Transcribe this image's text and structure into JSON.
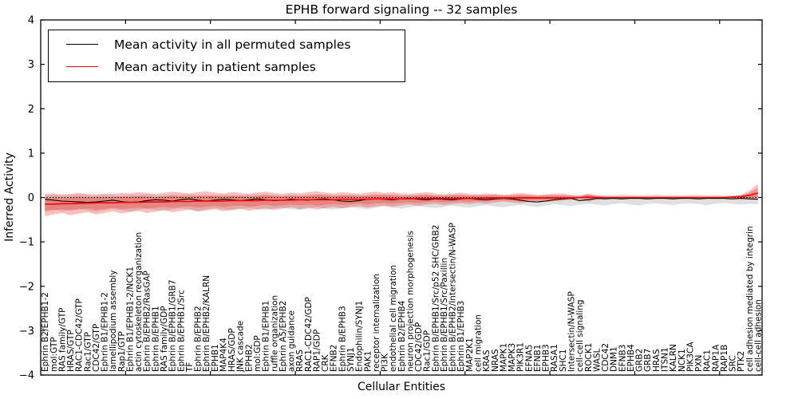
{
  "chart_data": {
    "type": "line",
    "title": "EPHB forward signaling -- 32 samples",
    "xlabel": "Cellular Entities",
    "ylabel": "Inferred Activity",
    "ylim": [
      -4,
      4
    ],
    "yticks": [
      4,
      3,
      2,
      1,
      0,
      -1,
      -2,
      -3,
      -4
    ],
    "grid": false,
    "legend_position": "upper left",
    "zero_line": "dotted",
    "colors": {
      "permuted_line": "#000000",
      "patient_line": "#ff0000",
      "patient_band": "rgba(240,45,40,0.30)",
      "permuted_band": "rgba(128,128,128,0.25)",
      "background": "#ffffff"
    },
    "categories": [
      "Ephrin B2/EPHB1-2",
      "mol:GTP",
      "RAS family/GTP",
      "HRAS/GTP",
      "RAC1-CDC42/GTP",
      "Rac1/GTP",
      "CDC42/GTP",
      "Ephrin B1/EPHB1-2",
      "lamellipodium assembly",
      "Rap1/GTP",
      "Ephrin B1/EPHB1-2/NCK1",
      "actin cytoskeleton reorganization",
      "Ephrin B/EPHB2/RasGAP",
      "Ephrin B/EPHB1",
      "RAS family/GDP",
      "Ephrin B/EPHB1/GRB7",
      "Ephrin B/EPHB1/Src",
      "TF",
      "Ephrin B/EPHB2",
      "Ephrin B/EPHB2/KALRN",
      "EPHB1",
      "MAP4K4",
      "HRAS/GDP",
      "JNK cascade",
      "EPHB2",
      "mol:GDP",
      "Ephrin B1/EPHB1",
      "ruffle organization",
      "Ephrin A5/EPHB2",
      "axon guidance",
      "RRAS",
      "RAC1-CDC42/GDP",
      "RAP1/GDP",
      "CRK",
      "EFNB2",
      "Ephrin B/EPHB3",
      "SYNJ1",
      "Endophilin/SYNJ1",
      "PAK1",
      "receptor internalization",
      "PI3K",
      "endothelial cell migration",
      "Ephrin B2/EPHB4",
      "neuron projection morphogenesis",
      "CDC42/GDP",
      "Rac1/GDP",
      "Ephrin B/EPHB1/Src/p52 SHC/GRB2",
      "Ephrin B/EPHB1/Src/Paxillin",
      "Ephrin B/EPHB2/Intersectin/N-WASP",
      "Ephrin B1/EPHB3",
      "MAP2K1",
      "cell migration",
      "KRAS",
      "NRAS",
      "MAPK1",
      "MAPK3",
      "PIK3R1",
      "EFNA5",
      "EFNB1",
      "EPHB3",
      "RASA1",
      "SHC1",
      "Intersectin/N-WASP",
      "cell-cell signaling",
      "ROCK1",
      "WASL",
      "CDC42",
      "DNM1",
      "EFNB3",
      "EPHB4",
      "GRB2",
      "GRB7",
      "HRAS",
      "ITSN1",
      "KALRN",
      "NCK1",
      "PIK3CA",
      "PXN",
      "RAC1",
      "RAP1A",
      "RAP1B",
      "SRC",
      "PTK2",
      "cell adhesion mediated by integrin",
      "cell-cell adhesion"
    ],
    "series": [
      {
        "name": "Mean activity in all permuted samples",
        "color": "#000000",
        "values": [
          -0.04,
          -0.06,
          -0.08,
          -0.09,
          -0.1,
          -0.11,
          -0.1,
          -0.08,
          -0.06,
          -0.09,
          -0.11,
          -0.1,
          -0.07,
          -0.05,
          -0.06,
          -0.08,
          -0.05,
          -0.03,
          -0.06,
          -0.08,
          -0.06,
          -0.04,
          -0.05,
          -0.07,
          -0.05,
          -0.03,
          -0.05,
          -0.07,
          -0.06,
          -0.04,
          -0.05,
          -0.06,
          -0.04,
          -0.03,
          -0.05,
          -0.08,
          -0.09,
          -0.07,
          -0.04,
          -0.03,
          -0.04,
          -0.05,
          -0.03,
          -0.02,
          -0.04,
          -0.05,
          -0.03,
          -0.04,
          -0.05,
          -0.03,
          -0.02,
          -0.04,
          -0.05,
          -0.03,
          -0.02,
          -0.03,
          -0.06,
          -0.09,
          -0.1,
          -0.08,
          -0.05,
          -0.03,
          -0.02,
          -0.07,
          -0.05,
          -0.02,
          -0.03,
          -0.02,
          -0.03,
          -0.02,
          -0.02,
          -0.03,
          -0.02,
          -0.02,
          -0.03,
          -0.02,
          -0.02,
          -0.03,
          -0.02,
          -0.02,
          -0.02,
          -0.03,
          -0.02,
          -0.03,
          -0.04
        ]
      },
      {
        "name": "Mean activity in patient samples",
        "color": "#ff0000",
        "values": [
          -0.15,
          -0.15,
          -0.14,
          -0.14,
          -0.13,
          -0.13,
          -0.12,
          -0.12,
          -0.12,
          -0.11,
          -0.11,
          -0.11,
          -0.1,
          -0.1,
          -0.1,
          -0.09,
          -0.09,
          -0.09,
          -0.08,
          -0.08,
          -0.08,
          -0.08,
          -0.07,
          -0.07,
          -0.07,
          -0.07,
          -0.06,
          -0.06,
          -0.06,
          -0.06,
          -0.05,
          -0.05,
          -0.05,
          -0.05,
          -0.05,
          -0.04,
          -0.04,
          -0.04,
          -0.04,
          -0.03,
          -0.03,
          -0.03,
          -0.03,
          -0.03,
          -0.02,
          -0.02,
          -0.02,
          -0.02,
          -0.02,
          -0.02,
          -0.02,
          -0.02,
          -0.01,
          -0.01,
          -0.01,
          -0.01,
          -0.01,
          -0.01,
          -0.01,
          -0.01,
          -0.01,
          -0.01,
          -0.01,
          0.0,
          0.01,
          0.0,
          0.0,
          0.0,
          0.0,
          0.0,
          0.0,
          0.0,
          0.0,
          0.0,
          0.0,
          0.0,
          0.0,
          0.0,
          0.0,
          0.0,
          0.0,
          0.01,
          0.02,
          0.05,
          0.1
        ]
      }
    ],
    "bands": {
      "patient": {
        "upper": [
          0.08,
          0.09,
          0.07,
          0.08,
          0.1,
          0.08,
          0.07,
          0.09,
          0.08,
          0.1,
          0.09,
          0.12,
          0.1,
          0.08,
          0.1,
          0.13,
          0.11,
          0.09,
          0.12,
          0.14,
          0.11,
          0.09,
          0.12,
          0.1,
          0.08,
          0.11,
          0.13,
          0.1,
          0.08,
          0.11,
          0.09,
          0.12,
          0.14,
          0.11,
          0.09,
          0.12,
          0.1,
          0.08,
          0.11,
          0.13,
          0.1,
          0.12,
          0.09,
          0.08,
          0.1,
          0.12,
          0.09,
          0.07,
          0.09,
          0.11,
          0.08,
          0.07,
          0.09,
          0.08,
          0.06,
          0.08,
          0.1,
          0.08,
          0.06,
          0.07,
          0.09,
          0.09,
          0.06,
          0.03,
          0.09,
          0.05,
          0.02,
          0.02,
          0.02,
          0.02,
          0.02,
          0.02,
          0.02,
          0.02,
          0.02,
          0.02,
          0.02,
          0.02,
          0.02,
          0.02,
          0.02,
          0.03,
          0.06,
          0.15,
          0.3
        ],
        "lower": [
          -0.42,
          -0.38,
          -0.35,
          -0.4,
          -0.36,
          -0.33,
          -0.38,
          -0.35,
          -0.31,
          -0.36,
          -0.33,
          -0.3,
          -0.35,
          -0.32,
          -0.28,
          -0.33,
          -0.3,
          -0.27,
          -0.32,
          -0.29,
          -0.26,
          -0.31,
          -0.28,
          -0.25,
          -0.3,
          -0.27,
          -0.24,
          -0.28,
          -0.25,
          -0.22,
          -0.26,
          -0.23,
          -0.27,
          -0.24,
          -0.21,
          -0.25,
          -0.22,
          -0.19,
          -0.23,
          -0.2,
          -0.18,
          -0.21,
          -0.18,
          -0.16,
          -0.19,
          -0.16,
          -0.14,
          -0.17,
          -0.15,
          -0.13,
          -0.15,
          -0.12,
          -0.14,
          -0.11,
          -0.09,
          -0.11,
          -0.13,
          -0.1,
          -0.08,
          -0.1,
          -0.08,
          -0.07,
          -0.05,
          -0.03,
          -0.09,
          -0.05,
          -0.02,
          -0.02,
          -0.02,
          -0.02,
          -0.02,
          -0.02,
          -0.02,
          -0.02,
          -0.02,
          -0.02,
          -0.02,
          -0.02,
          -0.02,
          -0.02,
          -0.02,
          -0.02,
          -0.03,
          -0.04,
          -0.05
        ]
      },
      "permuted": {
        "upper": [
          0.05,
          0.06,
          0.04,
          0.05,
          0.07,
          0.05,
          0.04,
          0.06,
          0.05,
          0.04,
          0.06,
          0.05,
          0.07,
          0.05,
          0.04,
          0.06,
          0.05,
          0.07,
          0.05,
          0.04,
          0.05,
          0.06,
          0.04,
          0.05,
          0.06,
          0.05,
          0.07,
          0.05,
          0.04,
          0.06,
          0.05,
          0.04,
          0.06,
          0.07,
          0.05,
          0.04,
          0.06,
          0.05,
          0.04,
          0.05,
          0.07,
          0.05,
          0.04,
          0.06,
          0.05,
          0.06,
          0.04,
          0.05,
          0.06,
          0.05,
          0.04,
          0.06,
          0.05,
          0.07,
          0.05,
          0.04,
          0.06,
          0.05,
          0.04,
          0.06,
          0.05,
          0.04,
          0.05,
          0.06,
          0.07,
          0.05,
          0.06,
          0.05,
          0.07,
          0.06,
          0.05,
          0.06,
          0.07,
          0.05,
          0.06,
          0.05,
          0.06,
          0.07,
          0.05,
          0.06,
          0.05,
          0.06,
          0.05,
          0.06,
          0.05
        ],
        "lower": [
          -0.3,
          -0.27,
          -0.31,
          -0.28,
          -0.25,
          -0.29,
          -0.32,
          -0.28,
          -0.25,
          -0.28,
          -0.31,
          -0.28,
          -0.25,
          -0.28,
          -0.3,
          -0.27,
          -0.24,
          -0.27,
          -0.3,
          -0.27,
          -0.24,
          -0.26,
          -0.29,
          -0.26,
          -0.23,
          -0.26,
          -0.28,
          -0.25,
          -0.23,
          -0.26,
          -0.28,
          -0.25,
          -0.22,
          -0.25,
          -0.27,
          -0.24,
          -0.21,
          -0.24,
          -0.26,
          -0.23,
          -0.2,
          -0.23,
          -0.25,
          -0.22,
          -0.19,
          -0.22,
          -0.24,
          -0.21,
          -0.18,
          -0.21,
          -0.23,
          -0.2,
          -0.17,
          -0.2,
          -0.22,
          -0.19,
          -0.16,
          -0.19,
          -0.21,
          -0.18,
          -0.15,
          -0.17,
          -0.19,
          -0.16,
          -0.14,
          -0.16,
          -0.18,
          -0.15,
          -0.13,
          -0.16,
          -0.18,
          -0.15,
          -0.13,
          -0.15,
          -0.17,
          -0.14,
          -0.13,
          -0.15,
          -0.17,
          -0.14,
          -0.12,
          -0.14,
          -0.16,
          -0.14,
          -0.15
        ]
      }
    }
  },
  "legend": {
    "items": [
      {
        "label": "Mean activity in all permuted samples",
        "color": "#000000"
      },
      {
        "label": "Mean activity in patient samples",
        "color": "#ff0000"
      }
    ]
  }
}
